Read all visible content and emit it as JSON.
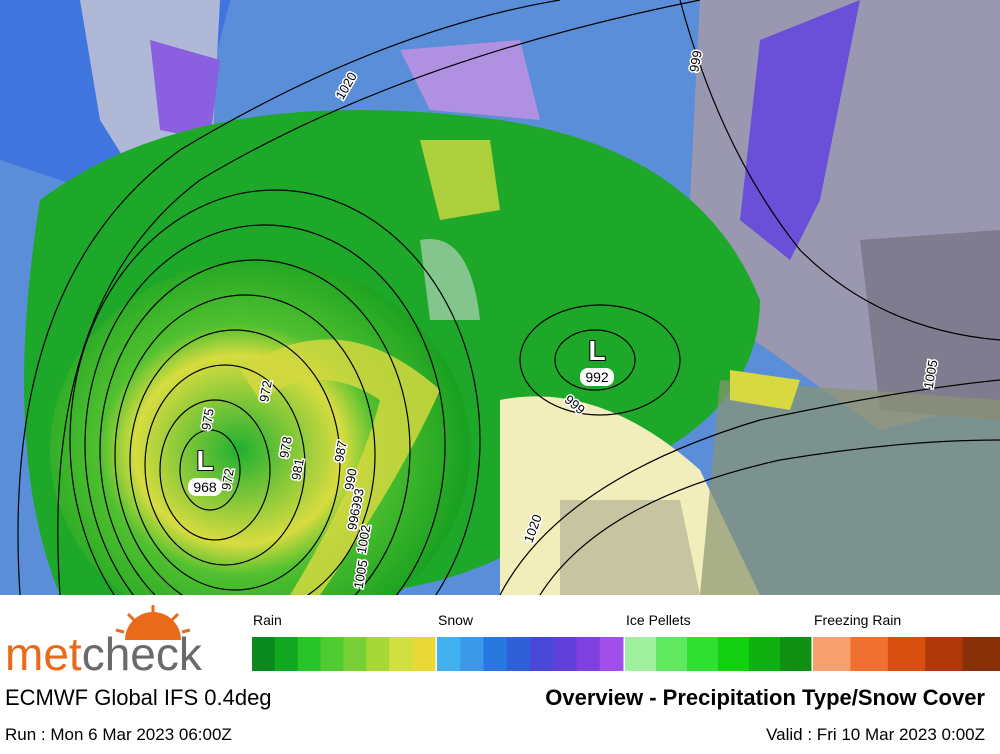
{
  "logo": {
    "met": "met",
    "check": "check"
  },
  "legend": {
    "groups": [
      {
        "label": "Rain",
        "colors": [
          "#0a8a1e",
          "#14a820",
          "#28c428",
          "#50cc30",
          "#78d038",
          "#a8d838",
          "#d0e040",
          "#e8d838"
        ]
      },
      {
        "label": "Snow",
        "colors": [
          "#40b0f0",
          "#3c98e8",
          "#2878e0",
          "#3060d8",
          "#4848d8",
          "#6040d8",
          "#8040e0",
          "#a050e8"
        ]
      },
      {
        "label": "Ice Pellets",
        "colors": [
          "#a0f0a0",
          "#60e860",
          "#30e030",
          "#10d010",
          "#10b010",
          "#109010"
        ]
      },
      {
        "label": "Freezing Rain",
        "colors": [
          "#f8a070",
          "#f07030",
          "#d85010",
          "#b03808",
          "#883008"
        ]
      }
    ]
  },
  "model": "ECMWF Global IFS 0.4deg",
  "title": "Overview - Precipitation Type/Snow Cover",
  "run": "Run : Mon 6 Mar 2023 06:00Z",
  "valid": "Valid : Fri 10 Mar 2023 0:00Z",
  "map": {
    "isobar_labels": [
      1020,
      999,
      972,
      975,
      972,
      978,
      981,
      987,
      990,
      993,
      996,
      1002,
      1005,
      999,
      1020,
      1005
    ],
    "lows": [
      {
        "symbol": "L",
        "pressure": 968
      },
      {
        "symbol": "L",
        "pressure": 992
      }
    ]
  }
}
